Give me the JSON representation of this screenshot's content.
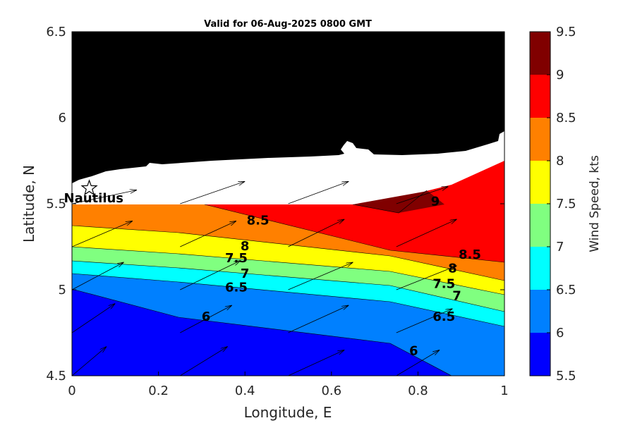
{
  "title": "Valid for 06-Aug-2025 0800 GMT",
  "xlabel": "Longitude, E",
  "ylabel": "Latitude, N",
  "colorbar_label": "Wind Speed, kts",
  "x_ticks": [
    "0",
    "0.2",
    "0.4",
    "0.6",
    "0.8",
    "1"
  ],
  "y_ticks": [
    "4.5",
    "5",
    "5.5",
    "6",
    "6.5"
  ],
  "colorbar_ticks": [
    "5.5",
    "6",
    "6.5",
    "7",
    "7.5",
    "8",
    "8.5",
    "9",
    "9.5"
  ],
  "station_label": "Nautilus",
  "colors": {
    "5.5-6": "#0000ff",
    "6-6.5": "#0080ff",
    "6.5-7": "#00ffff",
    "7-7.5": "#80ff80",
    "7.5-8": "#ffff00",
    "8-8.5": "#ff8000",
    "8.5-9": "#ff0000",
    "9-9.5": "#800000",
    "land": "#000000",
    "coast_band": "#ffffff"
  },
  "contour_labels": [
    {
      "text": "8.5",
      "lon": 0.43,
      "lat": 5.38
    },
    {
      "text": "8",
      "lon": 0.4,
      "lat": 5.23
    },
    {
      "text": "7.5",
      "lon": 0.38,
      "lat": 5.16
    },
    {
      "text": "7",
      "lon": 0.4,
      "lat": 5.07
    },
    {
      "text": "6.5",
      "lon": 0.38,
      "lat": 4.99
    },
    {
      "text": "6",
      "lon": 0.31,
      "lat": 4.82
    },
    {
      "text": "9",
      "lon": 0.84,
      "lat": 5.49
    },
    {
      "text": "8.5",
      "lon": 0.92,
      "lat": 5.18
    },
    {
      "text": "8",
      "lon": 0.88,
      "lat": 5.1
    },
    {
      "text": "7.5",
      "lon": 0.86,
      "lat": 5.01
    },
    {
      "text": "7",
      "lon": 0.89,
      "lat": 4.94
    },
    {
      "text": "6.5",
      "lon": 0.86,
      "lat": 4.82
    },
    {
      "text": "6",
      "lon": 0.79,
      "lat": 4.62
    }
  ],
  "chart_data": {
    "type": "contour-map",
    "title": "Valid for 06-Aug-2025 0800 GMT",
    "xlabel": "Longitude, E",
    "ylabel": "Latitude, N",
    "xlim": [
      0,
      1
    ],
    "ylim": [
      4.5,
      6.5
    ],
    "colorbar": {
      "label": "Wind Speed, kts",
      "range": [
        5.5,
        9.5
      ],
      "step": 0.5
    },
    "station": {
      "name": "Nautilus",
      "lon": 0.04,
      "lat": 5.59
    },
    "wind_vectors": [
      {
        "lon": 0.0,
        "lat": 4.5,
        "dlon": 0.08,
        "dlat": 0.17
      },
      {
        "lon": 0.25,
        "lat": 4.5,
        "dlon": 0.11,
        "dlat": 0.17
      },
      {
        "lon": 0.5,
        "lat": 4.5,
        "dlon": 0.13,
        "dlat": 0.15
      },
      {
        "lon": 0.75,
        "lat": 4.5,
        "dlon": 0.1,
        "dlat": 0.15
      },
      {
        "lon": 0.0,
        "lat": 4.75,
        "dlon": 0.1,
        "dlat": 0.17
      },
      {
        "lon": 0.25,
        "lat": 4.75,
        "dlon": 0.12,
        "dlat": 0.16
      },
      {
        "lon": 0.5,
        "lat": 4.75,
        "dlon": 0.14,
        "dlat": 0.16
      },
      {
        "lon": 0.75,
        "lat": 4.75,
        "dlon": 0.13,
        "dlat": 0.14
      },
      {
        "lon": 0.0,
        "lat": 5.0,
        "dlon": 0.12,
        "dlat": 0.16
      },
      {
        "lon": 0.25,
        "lat": 5.0,
        "dlon": 0.14,
        "dlat": 0.17
      },
      {
        "lon": 0.5,
        "lat": 5.0,
        "dlon": 0.15,
        "dlat": 0.16
      },
      {
        "lon": 0.75,
        "lat": 5.0,
        "dlon": 0.14,
        "dlat": 0.14
      },
      {
        "lon": 0.0,
        "lat": 5.25,
        "dlon": 0.14,
        "dlat": 0.15
      },
      {
        "lon": 0.25,
        "lat": 5.25,
        "dlon": 0.13,
        "dlat": 0.15
      },
      {
        "lon": 0.5,
        "lat": 5.25,
        "dlon": 0.13,
        "dlat": 0.16
      },
      {
        "lon": 0.75,
        "lat": 5.25,
        "dlon": 0.14,
        "dlat": 0.16
      },
      {
        "lon": 0.0,
        "lat": 5.5,
        "dlon": 0.15,
        "dlat": 0.08
      },
      {
        "lon": 0.25,
        "lat": 5.5,
        "dlon": 0.15,
        "dlat": 0.13
      },
      {
        "lon": 0.5,
        "lat": 5.5,
        "dlon": 0.14,
        "dlat": 0.13
      },
      {
        "lon": 0.75,
        "lat": 5.5,
        "dlon": 0.12,
        "dlat": 0.1
      }
    ]
  }
}
